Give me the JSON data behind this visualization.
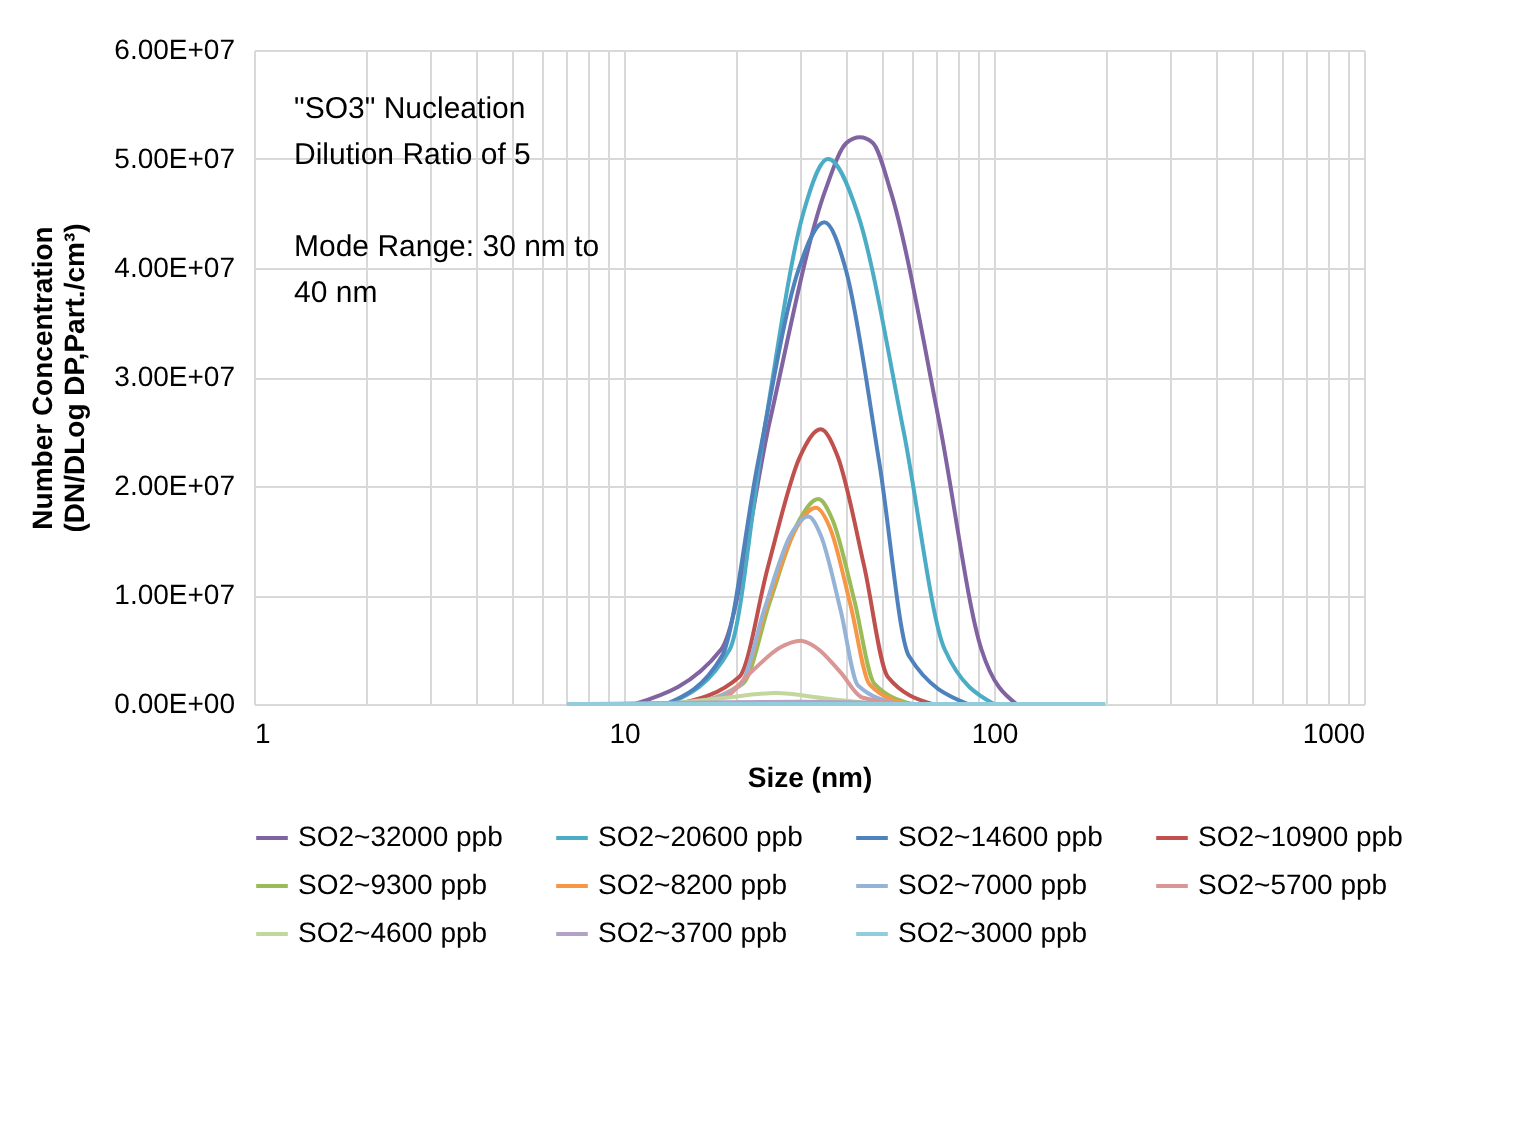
{
  "chart_data": {
    "type": "line",
    "xlabel": "Size (nm)",
    "ylabel": "Number Concentration (DN/DLog DP,Part./cm³)",
    "annotations": [
      "\"SO3\" Nucleation Dilution Ratio of 5",
      "Mode Range: 30 nm to 40 nm"
    ],
    "log": "x",
    "grid": true,
    "legend": "bottom",
    "line_style": "solid",
    "marker": "none",
    "xlim": [
      1,
      1000
    ],
    "xticks": [
      1,
      {
        "value": 2,
        "label": null
      },
      {
        "value": 3,
        "label": null
      },
      {
        "value": 4,
        "label": null
      },
      {
        "value": 5,
        "label": null
      },
      {
        "value": 6,
        "label": null
      },
      {
        "value": 7,
        "label": null
      },
      {
        "value": 8,
        "label": null
      },
      {
        "value": 9,
        "label": null
      },
      10,
      {
        "value": 20,
        "label": null
      },
      {
        "value": 30,
        "label": null
      },
      {
        "value": 40,
        "label": null
      },
      {
        "value": 50,
        "label": null
      },
      {
        "value": 60,
        "label": null
      },
      {
        "value": 70,
        "label": null
      },
      {
        "value": 80,
        "label": null
      },
      {
        "value": 90,
        "label": null
      },
      100,
      {
        "value": 200,
        "label": null
      },
      {
        "value": 300,
        "label": null
      },
      {
        "value": 400,
        "label": null
      },
      {
        "value": 500,
        "label": null
      },
      {
        "value": 600,
        "label": null
      },
      {
        "value": 700,
        "label": null
      },
      {
        "value": 800,
        "label": null
      },
      {
        "value": 900,
        "label": null
      },
      1000
    ],
    "ylim": [
      0,
      60000000
    ],
    "yticks": [
      {
        "value": 0,
        "label": "0.00E+00"
      },
      {
        "value": 10000000,
        "label": "1.00E+07"
      },
      {
        "value": 20000000,
        "label": "2.00E+07"
      },
      {
        "value": 30000000,
        "label": "3.00E+07"
      },
      {
        "value": 40000000,
        "label": "4.00E+07"
      },
      {
        "value": 50000000,
        "label": "5.00E+07"
      },
      {
        "value": 60000000,
        "label": "6.00E+07"
      }
    ],
    "series": [
      {
        "name": "SO2~32000 ppb",
        "color": "#8064a2",
        "x": [
          10.7,
          18.3,
          24.8,
          34.9,
          40,
          43.4,
          47,
          52.6,
          71,
          92.5,
          115
        ],
        "values": [
          0,
          5000000,
          26000000,
          47000000,
          51500000,
          52000000,
          51500000,
          47000000,
          26000000,
          5000000,
          0
        ]
      },
      {
        "name": "SO2~20600 ppb",
        "color": "#4bacc6",
        "x": [
          13.2,
          19.3,
          23.9,
          30.5,
          35.6,
          42.8,
          57,
          73.6,
          100
        ],
        "values": [
          0,
          5000000,
          25000000,
          45000000,
          50000000,
          45000000,
          25000000,
          5000000,
          0
        ]
      },
      {
        "name": "SO2~14600 ppb",
        "color": "#4f81bd",
        "x": [
          13,
          18.4,
          23,
          29.6,
          34.8,
          39.8,
          49,
          58.9,
          85
        ],
        "values": [
          0,
          4400000,
          22100000,
          39800000,
          44200000,
          39800000,
          22100000,
          4400000,
          0
        ]
      },
      {
        "name": "SO2~10900 ppb",
        "color": "#c0504d",
        "x": [
          14,
          20.5,
          24.5,
          29.9,
          34,
          37.8,
          44.6,
          51.6,
          68
        ],
        "values": [
          0,
          2500000,
          12600000,
          22700000,
          25200000,
          22700000,
          12600000,
          2500000,
          0
        ]
      },
      {
        "name": "SO2~9300 ppb",
        "color": "#9bbb59",
        "x": [
          15,
          21,
          24.8,
          29.8,
          33.5,
          36.6,
          42,
          47.4,
          60
        ],
        "values": [
          0,
          1900000,
          9400000,
          16900000,
          18800000,
          16900000,
          9400000,
          1900000,
          0
        ]
      },
      {
        "name": "SO2~8200 ppb",
        "color": "#f79646",
        "x": [
          15,
          20.6,
          24.3,
          29.3,
          33,
          36,
          41,
          46.1,
          58
        ],
        "values": [
          0,
          1800000,
          9000000,
          16200000,
          18000000,
          16200000,
          9000000,
          1800000,
          0
        ]
      },
      {
        "name": "SO2~7000 ppb",
        "color": "#95b3d7",
        "x": [
          15,
          20.6,
          23.9,
          28.2,
          31.5,
          34,
          38.5,
          42.9,
          55
        ],
        "values": [
          0,
          1700000,
          8600000,
          15500000,
          17200000,
          15500000,
          8600000,
          1700000,
          0
        ]
      },
      {
        "name": "SO2~5700 ppb",
        "color": "#d99694",
        "x": [
          13,
          18.6,
          22,
          26.5,
          30,
          33,
          38.5,
          44,
          58
        ],
        "values": [
          0,
          600000,
          2900000,
          5200000,
          5800000,
          5200000,
          2900000,
          600000,
          0
        ]
      },
      {
        "name": "SO2~4600 ppb",
        "color": "#c3d69b",
        "x": [
          13,
          18,
          25.7,
          35,
          48
        ],
        "values": [
          0,
          500000,
          1000000,
          500000,
          0
        ]
      },
      {
        "name": "SO2~3700 ppb",
        "color": "#b3a2c7",
        "x": [
          8,
          30,
          60
        ],
        "values": [
          0,
          200000,
          0
        ]
      },
      {
        "name": "SO2~3000 ppb",
        "color": "#93cddd",
        "x": [
          7,
          50,
          200
        ],
        "values": [
          0,
          0,
          0
        ]
      }
    ]
  }
}
